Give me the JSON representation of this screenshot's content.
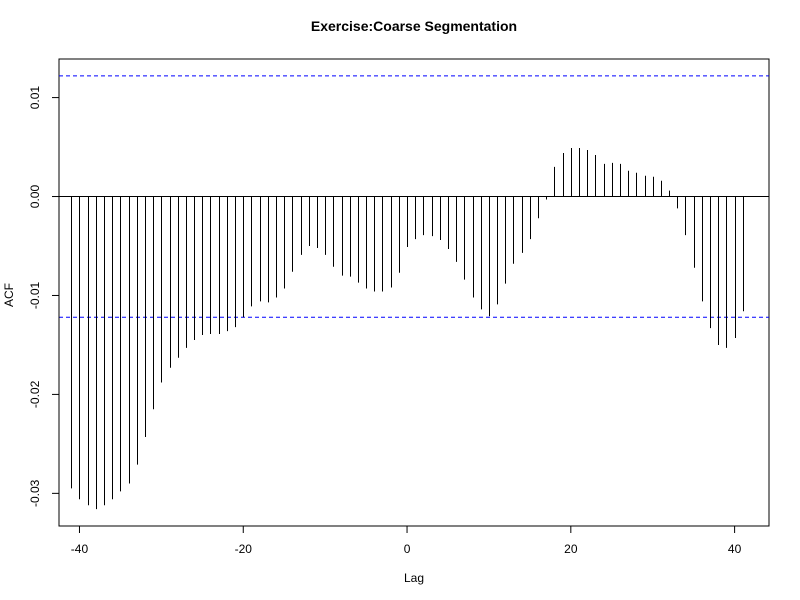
{
  "chart_data": {
    "type": "bar",
    "title": "Exercise:Coarse Segmentation",
    "xlabel": "Lag",
    "ylabel": "ACF",
    "x_ticks": [
      -40,
      -20,
      0,
      20,
      40
    ],
    "x_tick_labels": [
      "-40",
      "-20",
      "0",
      "20",
      "40"
    ],
    "y_ticks": [
      -0.03,
      -0.02,
      -0.01,
      0.0,
      0.01
    ],
    "y_tick_labels": [
      "-0.03",
      "-0.02",
      "-0.01",
      "0.00",
      "0.01"
    ],
    "xlim": [
      -42.5,
      44.2
    ],
    "ylim": [
      -0.0333,
      0.0139
    ],
    "confidence_bound": 0.0122,
    "confidence_color": "#0000ff",
    "lags": [
      -41,
      -40,
      -39,
      -38,
      -37,
      -36,
      -35,
      -34,
      -33,
      -32,
      -31,
      -30,
      -29,
      -28,
      -27,
      -26,
      -25,
      -24,
      -23,
      -22,
      -21,
      -20,
      -19,
      -18,
      -17,
      -16,
      -15,
      -14,
      -13,
      -12,
      -11,
      -10,
      -9,
      -8,
      -7,
      -6,
      -5,
      -4,
      -3,
      -2,
      -1,
      0,
      1,
      2,
      3,
      4,
      5,
      6,
      7,
      8,
      9,
      10,
      11,
      12,
      13,
      14,
      15,
      16,
      17,
      18,
      19,
      20,
      21,
      22,
      23,
      24,
      25,
      26,
      27,
      28,
      29,
      30,
      31,
      32,
      33,
      34,
      35,
      36,
      37,
      38,
      39,
      40,
      41
    ],
    "values": [
      -0.0295,
      -0.0306,
      -0.0312,
      -0.0316,
      -0.0312,
      -0.0306,
      -0.0298,
      -0.029,
      -0.0271,
      -0.0243,
      -0.0215,
      -0.0188,
      -0.0173,
      -0.0163,
      -0.0153,
      -0.0145,
      -0.014,
      -0.0139,
      -0.0139,
      -0.0136,
      -0.0132,
      -0.0122,
      -0.0111,
      -0.0106,
      -0.0107,
      -0.0102,
      -0.0093,
      -0.0076,
      -0.0059,
      -0.005,
      -0.0052,
      -0.0059,
      -0.0071,
      -0.008,
      -0.0081,
      -0.0087,
      -0.0093,
      -0.0096,
      -0.0096,
      -0.0092,
      -0.0077,
      -0.0051,
      -0.0043,
      -0.0039,
      -0.004,
      -0.0044,
      -0.0053,
      -0.0066,
      -0.0084,
      -0.0102,
      -0.0114,
      -0.0121,
      -0.0109,
      -0.0088,
      -0.0068,
      -0.0057,
      -0.0043,
      -0.0022,
      -0.0003,
      0.003,
      0.0044,
      0.0049,
      0.0049,
      0.0047,
      0.0042,
      0.0033,
      0.0034,
      0.0033,
      0.0026,
      0.0024,
      0.0021,
      0.002,
      0.0016,
      0.0006,
      -0.0012,
      -0.0039,
      -0.0072,
      -0.0106,
      -0.0133,
      -0.015,
      -0.0153,
      -0.0143,
      -0.0116
    ]
  }
}
